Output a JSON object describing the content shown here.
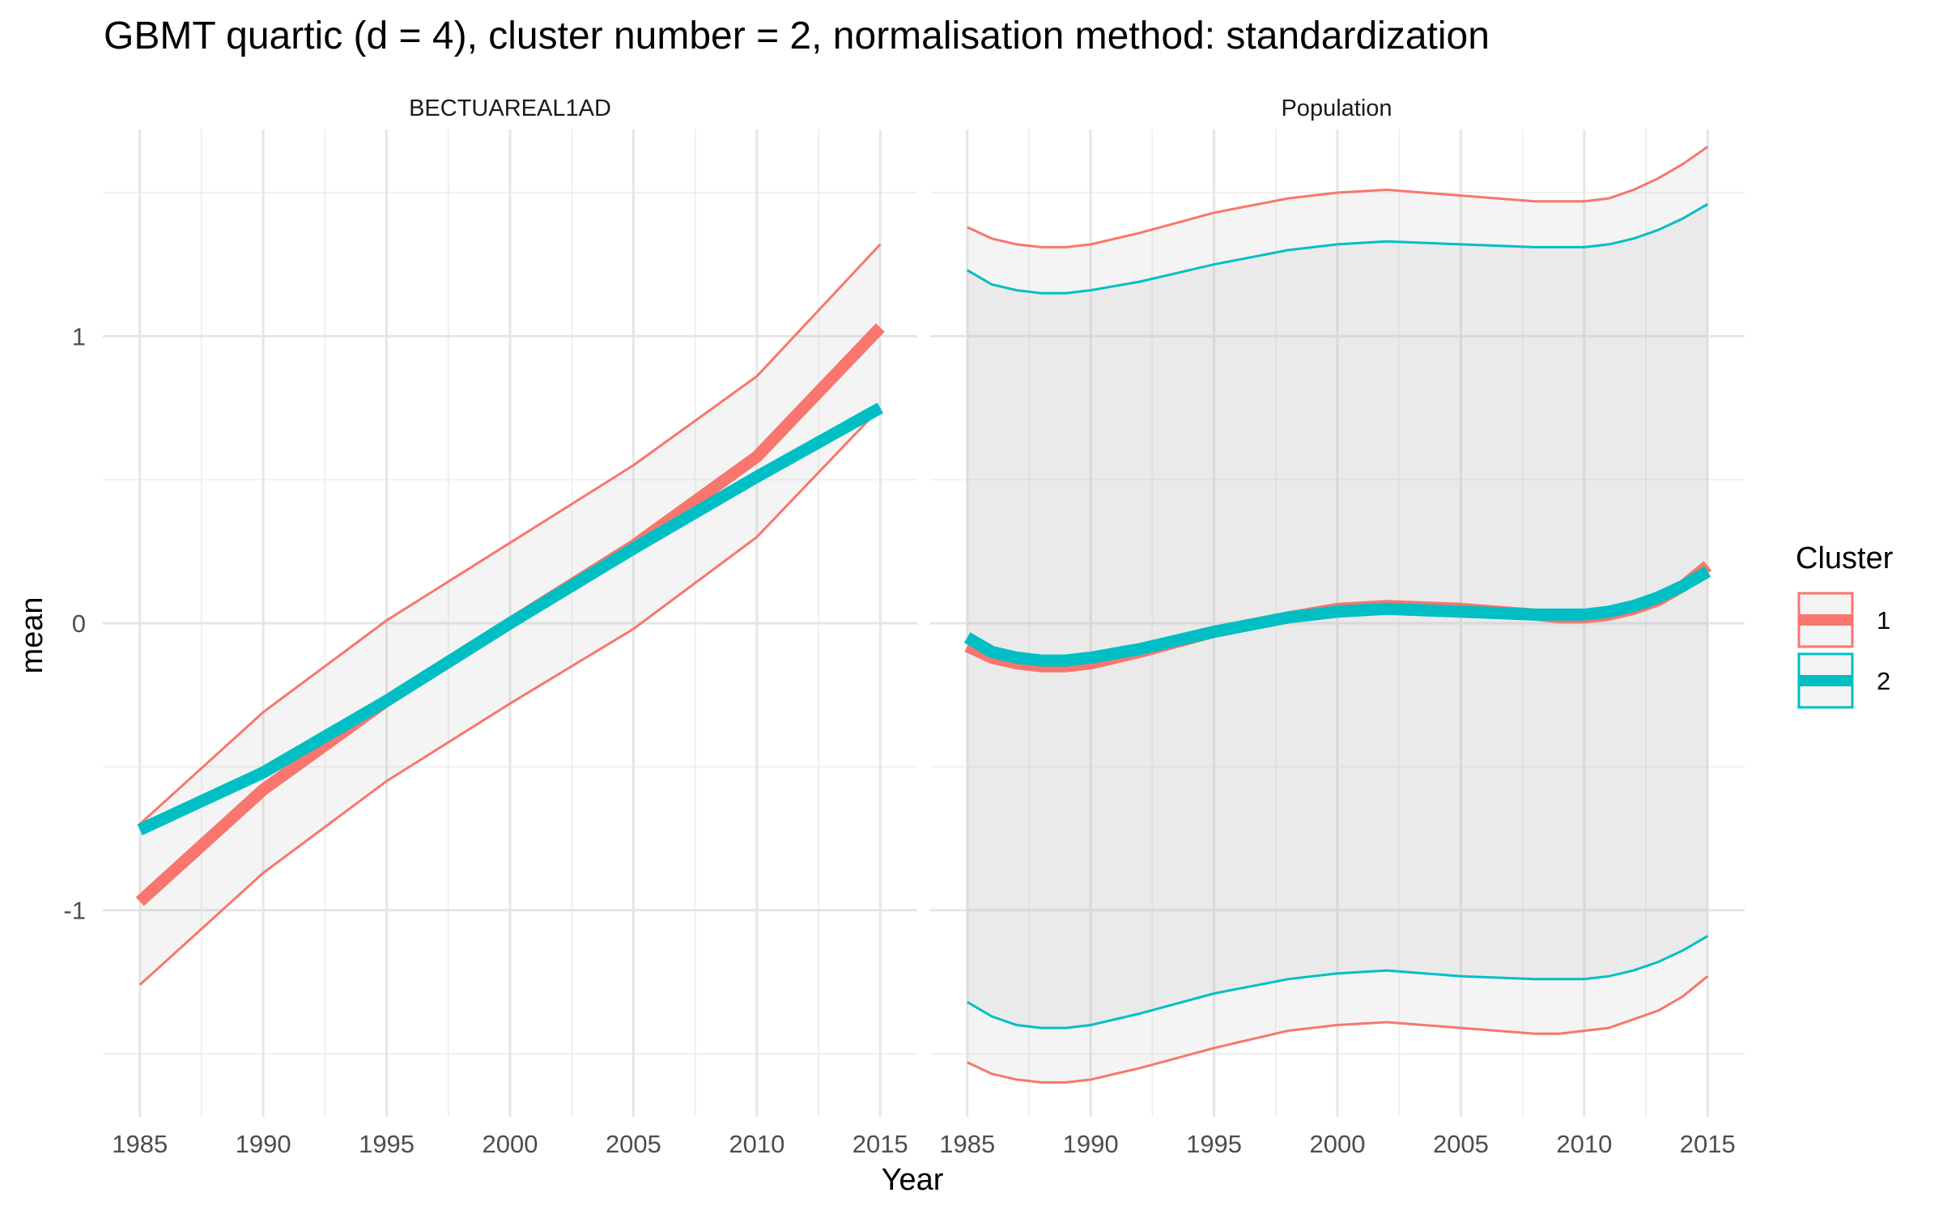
{
  "chart_data": {
    "type": "line",
    "title": "GBMT quartic (d = 4), cluster number = 2, normalisation method: standardization",
    "xlabel": "Year",
    "ylabel": "mean",
    "xlim": [
      1983.5,
      2016.5
    ],
    "ylim": [
      -1.72,
      1.72
    ],
    "x_ticks": [
      1985,
      1990,
      1995,
      2000,
      2005,
      2010,
      2015
    ],
    "y_ticks": [
      -1,
      0,
      1
    ],
    "y_tick_labels": [
      "-1",
      "0",
      "1"
    ],
    "grid": true,
    "legend": {
      "title": "Cluster",
      "position": "right",
      "entries": [
        {
          "label": "1",
          "color": "#F8766D"
        },
        {
          "label": "2",
          "color": "#00BFC4"
        }
      ]
    },
    "panels": [
      {
        "strip": "BECTUAREAL1AD",
        "series": [
          {
            "name": "1",
            "color": "#F8766D",
            "x": [
              1985,
              1990,
              1995,
              2000,
              2005,
              2010,
              2015
            ],
            "mean": [
              -0.97,
              -0.58,
              -0.27,
              0.0,
              0.27,
              0.58,
              1.03
            ],
            "lower": [
              -1.26,
              -0.87,
              -0.55,
              -0.28,
              -0.02,
              0.3,
              0.75
            ],
            "upper": [
              -0.7,
              -0.31,
              0.01,
              0.28,
              0.55,
              0.86,
              1.32
            ]
          },
          {
            "name": "2",
            "color": "#00BFC4",
            "x": [
              1985,
              1990,
              1995,
              2000,
              2005,
              2010,
              2015
            ],
            "mean": [
              -0.72,
              -0.52,
              -0.27,
              0.0,
              0.26,
              0.51,
              0.75
            ]
          }
        ]
      },
      {
        "strip": "Population",
        "series": [
          {
            "name": "1",
            "color": "#F8766D",
            "x": [
              1985,
              1986,
              1987,
              1988,
              1989,
              1990,
              1992,
              1995,
              1998,
              2000,
              2002,
              2005,
              2008,
              2009,
              2010,
              2011,
              2012,
              2013,
              2014,
              2015
            ],
            "mean": [
              -0.08,
              -0.12,
              -0.14,
              -0.15,
              -0.15,
              -0.14,
              -0.1,
              -0.03,
              0.02,
              0.05,
              0.06,
              0.05,
              0.03,
              0.02,
              0.02,
              0.03,
              0.05,
              0.08,
              0.13,
              0.2
            ],
            "lower": [
              -1.53,
              -1.57,
              -1.59,
              -1.6,
              -1.6,
              -1.59,
              -1.55,
              -1.48,
              -1.42,
              -1.4,
              -1.39,
              -1.41,
              -1.43,
              -1.43,
              -1.42,
              -1.41,
              -1.38,
              -1.35,
              -1.3,
              -1.23
            ],
            "upper": [
              1.38,
              1.34,
              1.32,
              1.31,
              1.31,
              1.32,
              1.36,
              1.43,
              1.48,
              1.5,
              1.51,
              1.49,
              1.47,
              1.47,
              1.47,
              1.48,
              1.51,
              1.55,
              1.6,
              1.66
            ]
          },
          {
            "name": "2",
            "color": "#00BFC4",
            "x": [
              1985,
              1986,
              1987,
              1988,
              1989,
              1990,
              1992,
              1995,
              1998,
              2000,
              2002,
              2005,
              2008,
              2009,
              2010,
              2011,
              2012,
              2013,
              2014,
              2015
            ],
            "mean": [
              -0.05,
              -0.1,
              -0.12,
              -0.13,
              -0.13,
              -0.12,
              -0.09,
              -0.03,
              0.02,
              0.04,
              0.05,
              0.04,
              0.03,
              0.03,
              0.03,
              0.04,
              0.06,
              0.09,
              0.13,
              0.18
            ],
            "lower": [
              -1.32,
              -1.37,
              -1.4,
              -1.41,
              -1.41,
              -1.4,
              -1.36,
              -1.29,
              -1.24,
              -1.22,
              -1.21,
              -1.23,
              -1.24,
              -1.24,
              -1.24,
              -1.23,
              -1.21,
              -1.18,
              -1.14,
              -1.09
            ],
            "upper": [
              1.23,
              1.18,
              1.16,
              1.15,
              1.15,
              1.16,
              1.19,
              1.25,
              1.3,
              1.32,
              1.33,
              1.32,
              1.31,
              1.31,
              1.31,
              1.32,
              1.34,
              1.37,
              1.41,
              1.46
            ]
          }
        ]
      }
    ]
  }
}
